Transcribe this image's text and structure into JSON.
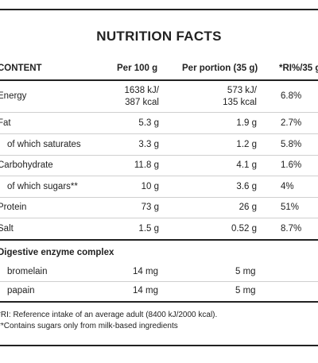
{
  "title": "NUTRITION FACTS",
  "columns": {
    "content": "CONTENT",
    "per100": "Per 100 g",
    "portion": "Per portion (35 g)",
    "ri": "*RI%/35 g"
  },
  "rows": [
    {
      "name": "Energy",
      "per100": [
        "1638 kJ/",
        "387 kcal"
      ],
      "portion": [
        "573 kJ/",
        "135 kcal"
      ],
      "ri": "6.8%",
      "indent": false
    },
    {
      "name": "Fat",
      "per100": [
        "5.3 g"
      ],
      "portion": [
        "1.9 g"
      ],
      "ri": "2.7%",
      "indent": false
    },
    {
      "name": "of which saturates",
      "per100": [
        "3.3 g"
      ],
      "portion": [
        "1.2 g"
      ],
      "ri": "5.8%",
      "indent": true
    },
    {
      "name": "Carbohydrate",
      "per100": [
        "11.8 g"
      ],
      "portion": [
        "4.1 g"
      ],
      "ri": "1.6%",
      "indent": false
    },
    {
      "name": "of which sugars**",
      "per100": [
        "10 g"
      ],
      "portion": [
        "3.6 g"
      ],
      "ri": "4%",
      "indent": true
    },
    {
      "name": "Protein",
      "per100": [
        "73 g"
      ],
      "portion": [
        "26 g"
      ],
      "ri": "51%",
      "indent": false
    },
    {
      "name": "Salt",
      "per100": [
        "1.5 g"
      ],
      "portion": [
        "0.52 g"
      ],
      "ri": "8.7%",
      "indent": false
    }
  ],
  "enzyme": {
    "heading": "Digestive enzyme complex",
    "items": [
      {
        "name": "bromelain",
        "per100": "14 mg",
        "portion": "5 mg"
      },
      {
        "name": "papain",
        "per100": "14 mg",
        "portion": "5 mg"
      }
    ]
  },
  "notes": {
    "ri": "*RI: Reference intake of an average adult (8400 kJ/2000 kcal).",
    "sugars": "**Contains sugars only from milk-based ingredients"
  }
}
